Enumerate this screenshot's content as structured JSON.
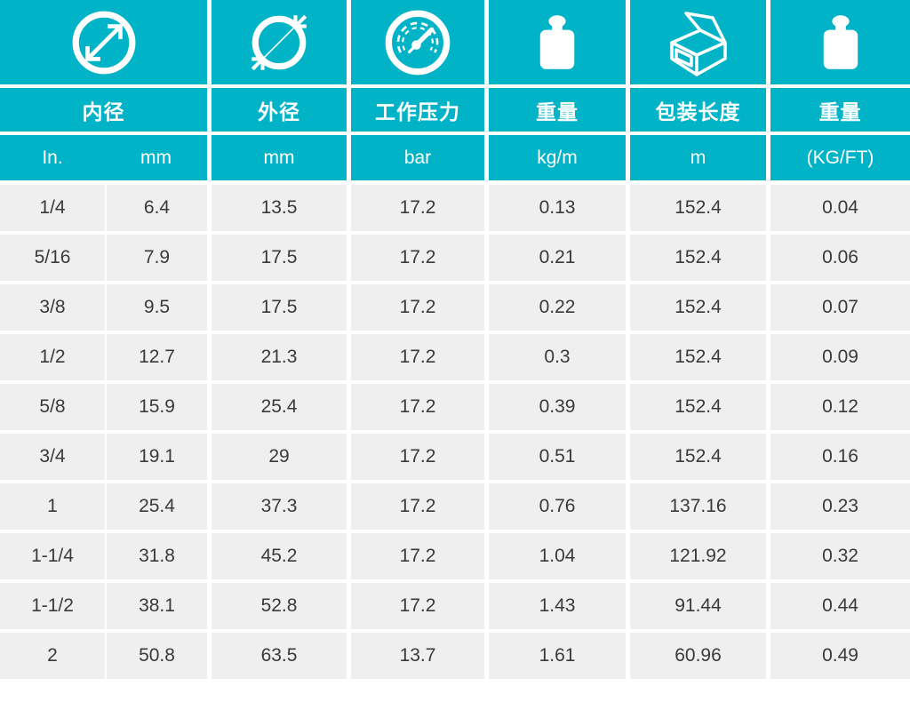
{
  "theme": {
    "teal": "#00b3c7",
    "row_bg": "#efefef",
    "text_dark": "#3a3a3a",
    "white": "#ffffff"
  },
  "header": {
    "groups": [
      {
        "icon": "inner-diameter-icon",
        "label": "内径"
      },
      {
        "icon": "outer-diameter-icon",
        "label": "外径"
      },
      {
        "icon": "pressure-gauge-icon",
        "label": "工作压力"
      },
      {
        "icon": "weight-icon",
        "label": "重量"
      },
      {
        "icon": "package-length-icon",
        "label": "包装长度"
      },
      {
        "icon": "weight-icon",
        "label": "重量"
      }
    ]
  },
  "table": {
    "units": [
      "In.",
      "mm",
      "mm",
      "bar",
      "kg/m",
      "m",
      "(KG/FT)"
    ],
    "rows": [
      [
        "1/4",
        "6.4",
        "13.5",
        "17.2",
        "0.13",
        "152.4",
        "0.04"
      ],
      [
        "5/16",
        "7.9",
        "17.5",
        "17.2",
        "0.21",
        "152.4",
        "0.06"
      ],
      [
        "3/8",
        "9.5",
        "17.5",
        "17.2",
        "0.22",
        "152.4",
        "0.07"
      ],
      [
        "1/2",
        "12.7",
        "21.3",
        "17.2",
        "0.3",
        "152.4",
        "0.09"
      ],
      [
        "5/8",
        "15.9",
        "25.4",
        "17.2",
        "0.39",
        "152.4",
        "0.12"
      ],
      [
        "3/4",
        "19.1",
        "29",
        "17.2",
        "0.51",
        "152.4",
        "0.16"
      ],
      [
        "1",
        "25.4",
        "37.3",
        "17.2",
        "0.76",
        "137.16",
        "0.23"
      ],
      [
        "1-1/4",
        "31.8",
        "45.2",
        "17.2",
        "1.04",
        "121.92",
        "0.32"
      ],
      [
        "1-1/2",
        "38.1",
        "52.8",
        "17.2",
        "1.43",
        "91.44",
        "0.44"
      ],
      [
        "2",
        "50.8",
        "63.5",
        "13.7",
        "1.61",
        "60.96",
        "0.49"
      ]
    ]
  },
  "chart_data": {
    "type": "table",
    "columns": [
      "内径 In.",
      "内径 mm",
      "外径 mm",
      "工作压力 bar",
      "重量 kg/m",
      "包装长度 m",
      "重量 (KG/FT)"
    ],
    "rows": [
      [
        "1/4",
        6.4,
        13.5,
        17.2,
        0.13,
        152.4,
        0.04
      ],
      [
        "5/16",
        7.9,
        17.5,
        17.2,
        0.21,
        152.4,
        0.06
      ],
      [
        "3/8",
        9.5,
        17.5,
        17.2,
        0.22,
        152.4,
        0.07
      ],
      [
        "1/2",
        12.7,
        21.3,
        17.2,
        0.3,
        152.4,
        0.09
      ],
      [
        "5/8",
        15.9,
        25.4,
        17.2,
        0.39,
        152.4,
        0.12
      ],
      [
        "3/4",
        19.1,
        29,
        17.2,
        0.51,
        152.4,
        0.16
      ],
      [
        "1",
        25.4,
        37.3,
        17.2,
        0.76,
        137.16,
        0.23
      ],
      [
        "1-1/4",
        31.8,
        45.2,
        17.2,
        1.04,
        121.92,
        0.32
      ],
      [
        "1-1/2",
        38.1,
        52.8,
        17.2,
        1.43,
        91.44,
        0.44
      ],
      [
        "2",
        50.8,
        63.5,
        13.7,
        1.61,
        60.96,
        0.49
      ]
    ]
  }
}
